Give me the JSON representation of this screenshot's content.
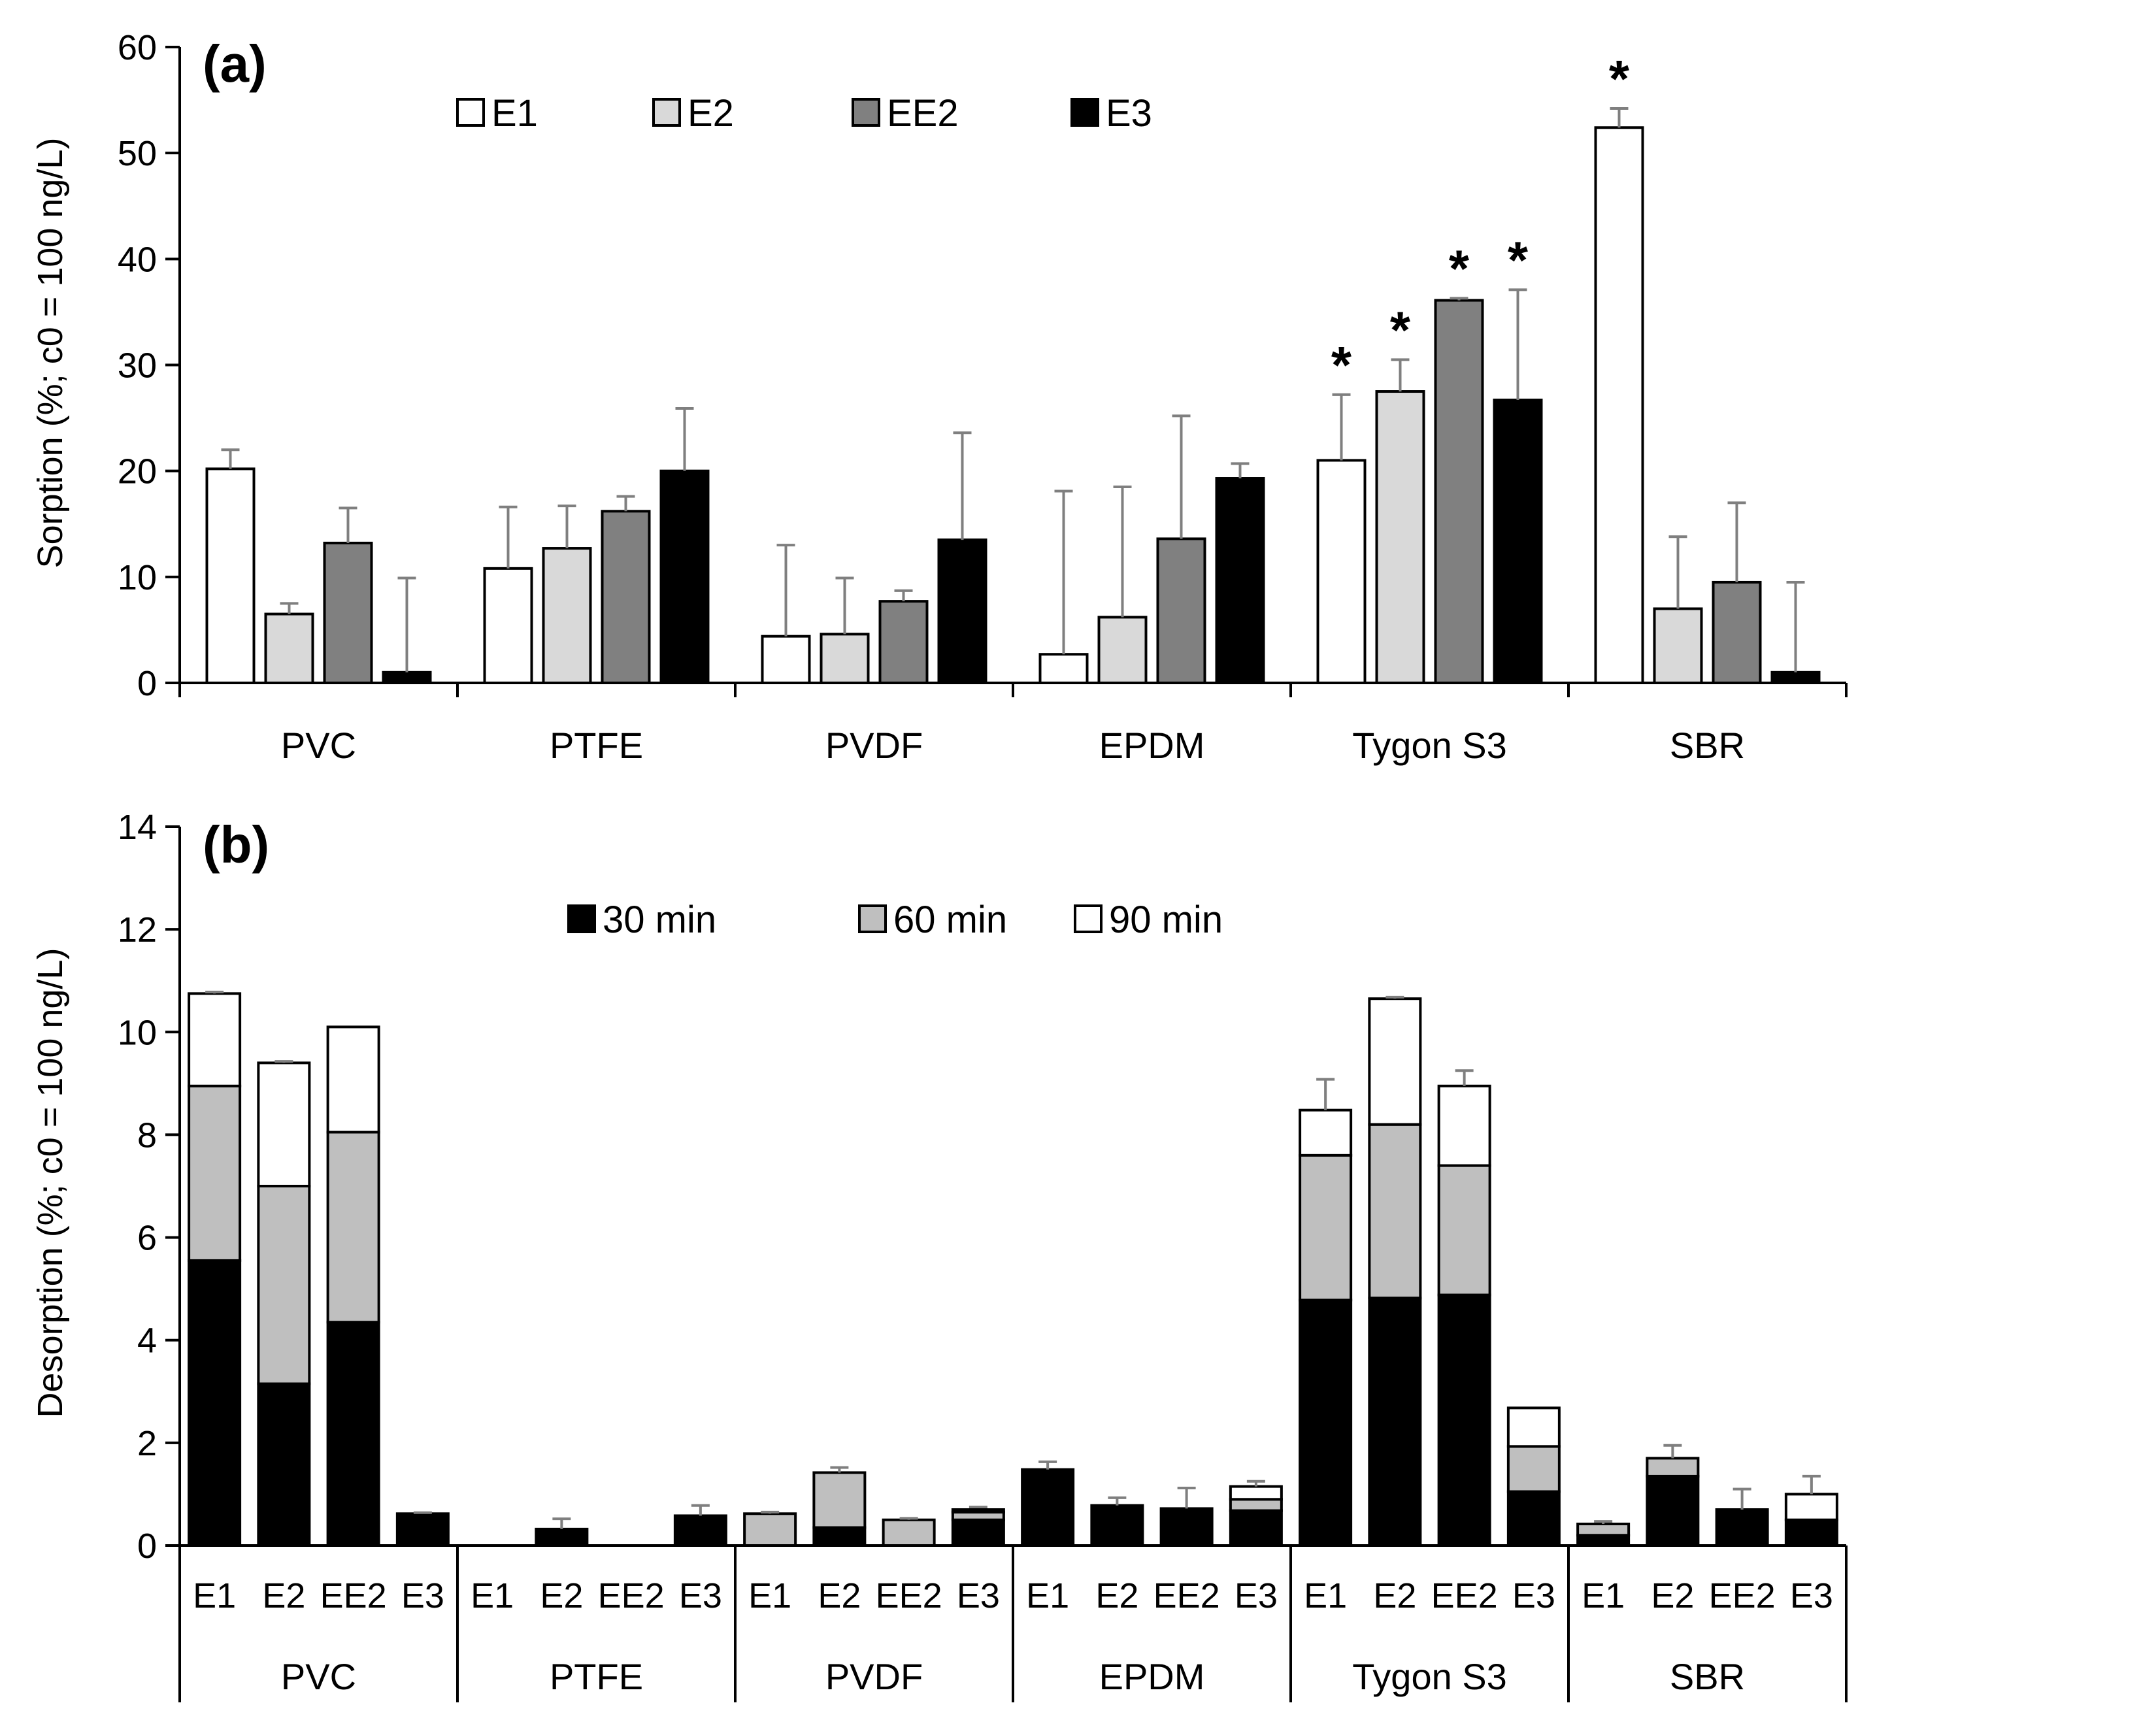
{
  "chart_data": [
    {
      "type": "bar",
      "panel_label": "(a)",
      "ylabel": "Sorption (%; c0 = 100 ng/L)",
      "ylim": [
        0,
        60
      ],
      "yticks": [
        "0",
        "10",
        "20",
        "30",
        "40",
        "50",
        "60"
      ],
      "categories": [
        "PVC",
        "PTFE",
        "PVDF",
        "EPDM",
        "Tygon S3",
        "SBR"
      ],
      "legend_position": "top",
      "series": [
        {
          "name": "E1",
          "color": "#ffffff",
          "values": [
            20.2,
            10.8,
            4.4,
            2.7,
            21.0,
            52.4
          ],
          "errors": [
            1.8,
            5.8,
            8.6,
            15.4,
            6.2,
            1.8
          ],
          "significant": [
            false,
            false,
            false,
            false,
            true,
            true
          ]
        },
        {
          "name": "E2",
          "color": "#d9d9d9",
          "values": [
            6.5,
            12.7,
            4.6,
            6.2,
            27.5,
            7.0
          ],
          "errors": [
            1.0,
            4.0,
            5.3,
            12.3,
            3.0,
            6.8
          ],
          "significant": [
            false,
            false,
            false,
            false,
            true,
            false
          ]
        },
        {
          "name": "EE2",
          "color": "#808080",
          "values": [
            13.2,
            16.2,
            7.7,
            13.6,
            36.1,
            9.5
          ],
          "errors": [
            3.3,
            1.4,
            1.0,
            11.6,
            0.2,
            7.5
          ],
          "significant": [
            false,
            false,
            false,
            false,
            true,
            false
          ]
        },
        {
          "name": "E3",
          "color": "#000000",
          "values": [
            1.0,
            20.0,
            13.5,
            19.3,
            26.7,
            1.0
          ],
          "errors": [
            8.9,
            5.9,
            10.1,
            1.4,
            10.4,
            8.5
          ],
          "significant": [
            false,
            false,
            false,
            false,
            true,
            false
          ]
        }
      ],
      "annotation_symbol": "*"
    },
    {
      "type": "bar",
      "stacked": true,
      "panel_label": "(b)",
      "ylabel": "Desorption (%; c0 = 100 ng/L)",
      "ylim": [
        0,
        14
      ],
      "yticks": [
        "0",
        "2",
        "4",
        "6",
        "8",
        "10",
        "12",
        "14"
      ],
      "groups": [
        "PVC",
        "PTFE",
        "PVDF",
        "EPDM",
        "Tygon S3",
        "SBR"
      ],
      "subcategories": [
        "E1",
        "E2",
        "EE2",
        "E3"
      ],
      "legend_position": "top",
      "series": [
        {
          "name": "30 min",
          "color": "#000000",
          "values": [
            [
              5.55,
              3.15,
              4.35,
              0.62
            ],
            [
              0,
              0.32,
              0,
              0.58
            ],
            [
              0,
              0.35,
              0,
              0.5
            ],
            [
              1.48,
              0.78,
              0.72,
              0.68
            ],
            [
              4.78,
              4.82,
              4.88,
              1.05
            ],
            [
              0.2,
              1.35,
              0.7,
              0.5
            ]
          ],
          "errors": [
            [
              0.4,
              0.15,
              0.1,
              0.02
            ],
            [
              0,
              0.2,
              0,
              0.2
            ],
            [
              0,
              0.2,
              0,
              0.15
            ],
            [
              0.15,
              0.15,
              0.4,
              0.25
            ],
            [
              0.95,
              1.55,
              0.35,
              0.05
            ],
            [
              0.05,
              0.15,
              0.4,
              0.05
            ]
          ]
        },
        {
          "name": "60 min",
          "color": "#bfbfbf",
          "values": [
            [
              3.4,
              3.85,
              3.7,
              0
            ],
            [
              0,
              0,
              0,
              0
            ],
            [
              0.62,
              1.07,
              0.5,
              0.15
            ],
            [
              0,
              0,
              0,
              0.22
            ],
            [
              2.82,
              3.38,
              2.52,
              0.88
            ],
            [
              0.22,
              0.35,
              0,
              0
            ]
          ],
          "errors": [
            [
              0.4,
              0.2,
              0.4,
              0
            ],
            [
              0,
              0,
              0,
              0
            ],
            [
              0.03,
              0.1,
              0.03,
              0.1
            ],
            [
              0,
              0,
              0,
              0.05
            ],
            [
              0.6,
              0.25,
              0.6,
              0.05
            ],
            [
              0.05,
              0.25,
              0,
              0
            ]
          ]
        },
        {
          "name": "90 min",
          "color": "#ffffff",
          "values": [
            [
              1.8,
              2.4,
              2.05,
              0
            ],
            [
              0,
              0,
              0,
              0
            ],
            [
              0,
              0,
              0,
              0.05
            ],
            [
              0,
              0,
              0,
              0.25
            ],
            [
              0.88,
              2.45,
              1.55,
              0.75
            ],
            [
              0,
              0,
              0,
              0.5
            ]
          ],
          "errors": [
            [
              0.03,
              0.03,
              0,
              0
            ],
            [
              0,
              0,
              0,
              0
            ],
            [
              0,
              0,
              0,
              0
            ],
            [
              0,
              0,
              0,
              0.1
            ],
            [
              0.6,
              0.03,
              0.3,
              0
            ],
            [
              0,
              0,
              0,
              0.35
            ]
          ]
        }
      ]
    }
  ]
}
